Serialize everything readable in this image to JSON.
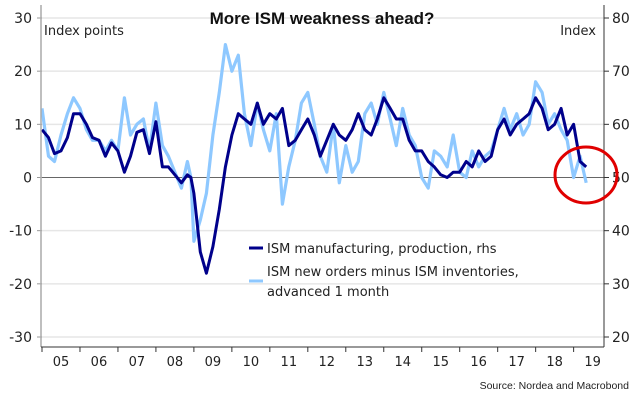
{
  "chart_data": {
    "type": "line",
    "title": "More ISM weakness ahead?",
    "left_axis": {
      "label": "Index points",
      "ticks": [
        30,
        20,
        10,
        0,
        -10,
        -20,
        -30
      ],
      "range": [
        -30,
        30
      ]
    },
    "right_axis": {
      "label": "Index",
      "ticks": [
        80,
        70,
        60,
        50,
        40,
        30,
        20
      ],
      "range": [
        20,
        80
      ]
    },
    "x_axis": {
      "tick_labels": [
        "05",
        "06",
        "07",
        "08",
        "09",
        "10",
        "11",
        "12",
        "13",
        "14",
        "15",
        "16",
        "17",
        "18",
        "19"
      ],
      "range": [
        2005.0,
        2019.8
      ]
    },
    "grid": true,
    "zero_line": 0,
    "legend_position": "bottom-right",
    "series": [
      {
        "name": "ISM manufacturing, production, rhs",
        "axis": "right",
        "color": "#00008B",
        "x": [
          2005.0,
          2005.17,
          2005.33,
          2005.5,
          2005.67,
          2005.83,
          2006.0,
          2006.17,
          2006.33,
          2006.5,
          2006.67,
          2006.83,
          2007.0,
          2007.17,
          2007.33,
          2007.5,
          2007.67,
          2007.83,
          2008.0,
          2008.17,
          2008.33,
          2008.5,
          2008.67,
          2008.83,
          2008.92,
          2009.0,
          2009.17,
          2009.33,
          2009.5,
          2009.67,
          2009.83,
          2010.0,
          2010.17,
          2010.33,
          2010.5,
          2010.67,
          2010.83,
          2011.0,
          2011.17,
          2011.33,
          2011.5,
          2011.67,
          2011.83,
          2012.0,
          2012.17,
          2012.33,
          2012.5,
          2012.67,
          2012.83,
          2013.0,
          2013.17,
          2013.33,
          2013.5,
          2013.67,
          2013.83,
          2014.0,
          2014.17,
          2014.33,
          2014.5,
          2014.67,
          2014.83,
          2015.0,
          2015.17,
          2015.33,
          2015.5,
          2015.67,
          2015.83,
          2016.0,
          2016.17,
          2016.33,
          2016.5,
          2016.67,
          2016.83,
          2017.0,
          2017.17,
          2017.33,
          2017.5,
          2017.67,
          2017.83,
          2018.0,
          2018.17,
          2018.33,
          2018.5,
          2018.67,
          2018.83,
          2019.0,
          2019.17,
          2019.33
        ],
        "values": [
          59,
          57.5,
          54.5,
          55,
          57.5,
          62,
          62,
          60,
          57.5,
          57,
          54,
          56.5,
          55,
          51,
          54,
          58.5,
          59,
          54.5,
          60.5,
          52,
          52,
          50.5,
          49,
          50.5,
          50,
          47,
          36,
          32,
          37,
          44,
          52,
          58,
          62,
          61,
          60,
          64,
          60,
          62,
          61,
          63,
          56,
          57,
          59,
          61,
          58,
          54,
          57,
          60,
          58,
          57,
          59,
          62,
          59,
          58,
          61,
          65,
          63,
          61,
          61,
          57,
          55,
          55,
          53,
          52,
          50.5,
          50,
          51,
          51,
          53,
          52,
          55,
          53,
          54,
          59,
          61,
          58,
          60,
          61,
          62,
          65,
          63,
          59,
          60,
          63,
          58,
          60,
          53,
          52
        ],
        "values_scale_note": "right-axis index points"
      },
      {
        "name": "ISM new orders minus ISM inventories, advanced 1 month",
        "axis": "left",
        "color": "#8EC8FF",
        "x": [
          2005.0,
          2005.17,
          2005.33,
          2005.5,
          2005.67,
          2005.83,
          2006.0,
          2006.17,
          2006.33,
          2006.5,
          2006.67,
          2006.83,
          2007.0,
          2007.17,
          2007.33,
          2007.5,
          2007.67,
          2007.83,
          2008.0,
          2008.17,
          2008.33,
          2008.5,
          2008.67,
          2008.83,
          2008.92,
          2009.0,
          2009.17,
          2009.33,
          2009.5,
          2009.67,
          2009.83,
          2010.0,
          2010.17,
          2010.33,
          2010.5,
          2010.67,
          2010.83,
          2011.0,
          2011.17,
          2011.33,
          2011.5,
          2011.67,
          2011.83,
          2012.0,
          2012.17,
          2012.33,
          2012.5,
          2012.67,
          2012.83,
          2013.0,
          2013.17,
          2013.33,
          2013.5,
          2013.67,
          2013.83,
          2014.0,
          2014.17,
          2014.33,
          2014.5,
          2014.67,
          2014.83,
          2015.0,
          2015.17,
          2015.33,
          2015.5,
          2015.67,
          2015.83,
          2016.0,
          2016.17,
          2016.33,
          2016.5,
          2016.67,
          2016.83,
          2017.0,
          2017.17,
          2017.33,
          2017.5,
          2017.67,
          2017.83,
          2018.0,
          2018.17,
          2018.33,
          2018.5,
          2018.67,
          2018.83,
          2019.0,
          2019.17,
          2019.33
        ],
        "values": [
          13,
          4,
          3,
          8,
          12,
          15,
          13,
          9,
          7,
          7,
          5,
          7,
          5,
          15,
          8,
          10,
          11,
          5,
          14,
          6,
          4,
          1,
          -2,
          3,
          0,
          -12,
          -8,
          -3,
          8,
          16,
          25,
          20,
          23,
          12,
          6,
          14,
          9,
          5,
          12,
          -5,
          2,
          7,
          14,
          16,
          10,
          4,
          1,
          10,
          -1,
          6,
          1,
          3,
          12,
          14,
          10,
          16,
          11,
          6,
          13,
          8,
          6,
          0,
          -2,
          5,
          4,
          2,
          8,
          1,
          0,
          5,
          2,
          4,
          5,
          9,
          13,
          9,
          12,
          8,
          10,
          18,
          16,
          10,
          12,
          9,
          7,
          0,
          4,
          -1
        ]
      }
    ],
    "annotations": [
      {
        "type": "circle",
        "color": "#E00000",
        "target": "end of 2018 to 2019 decline"
      }
    ],
    "source": "Source: Nordea and Macrobond"
  }
}
